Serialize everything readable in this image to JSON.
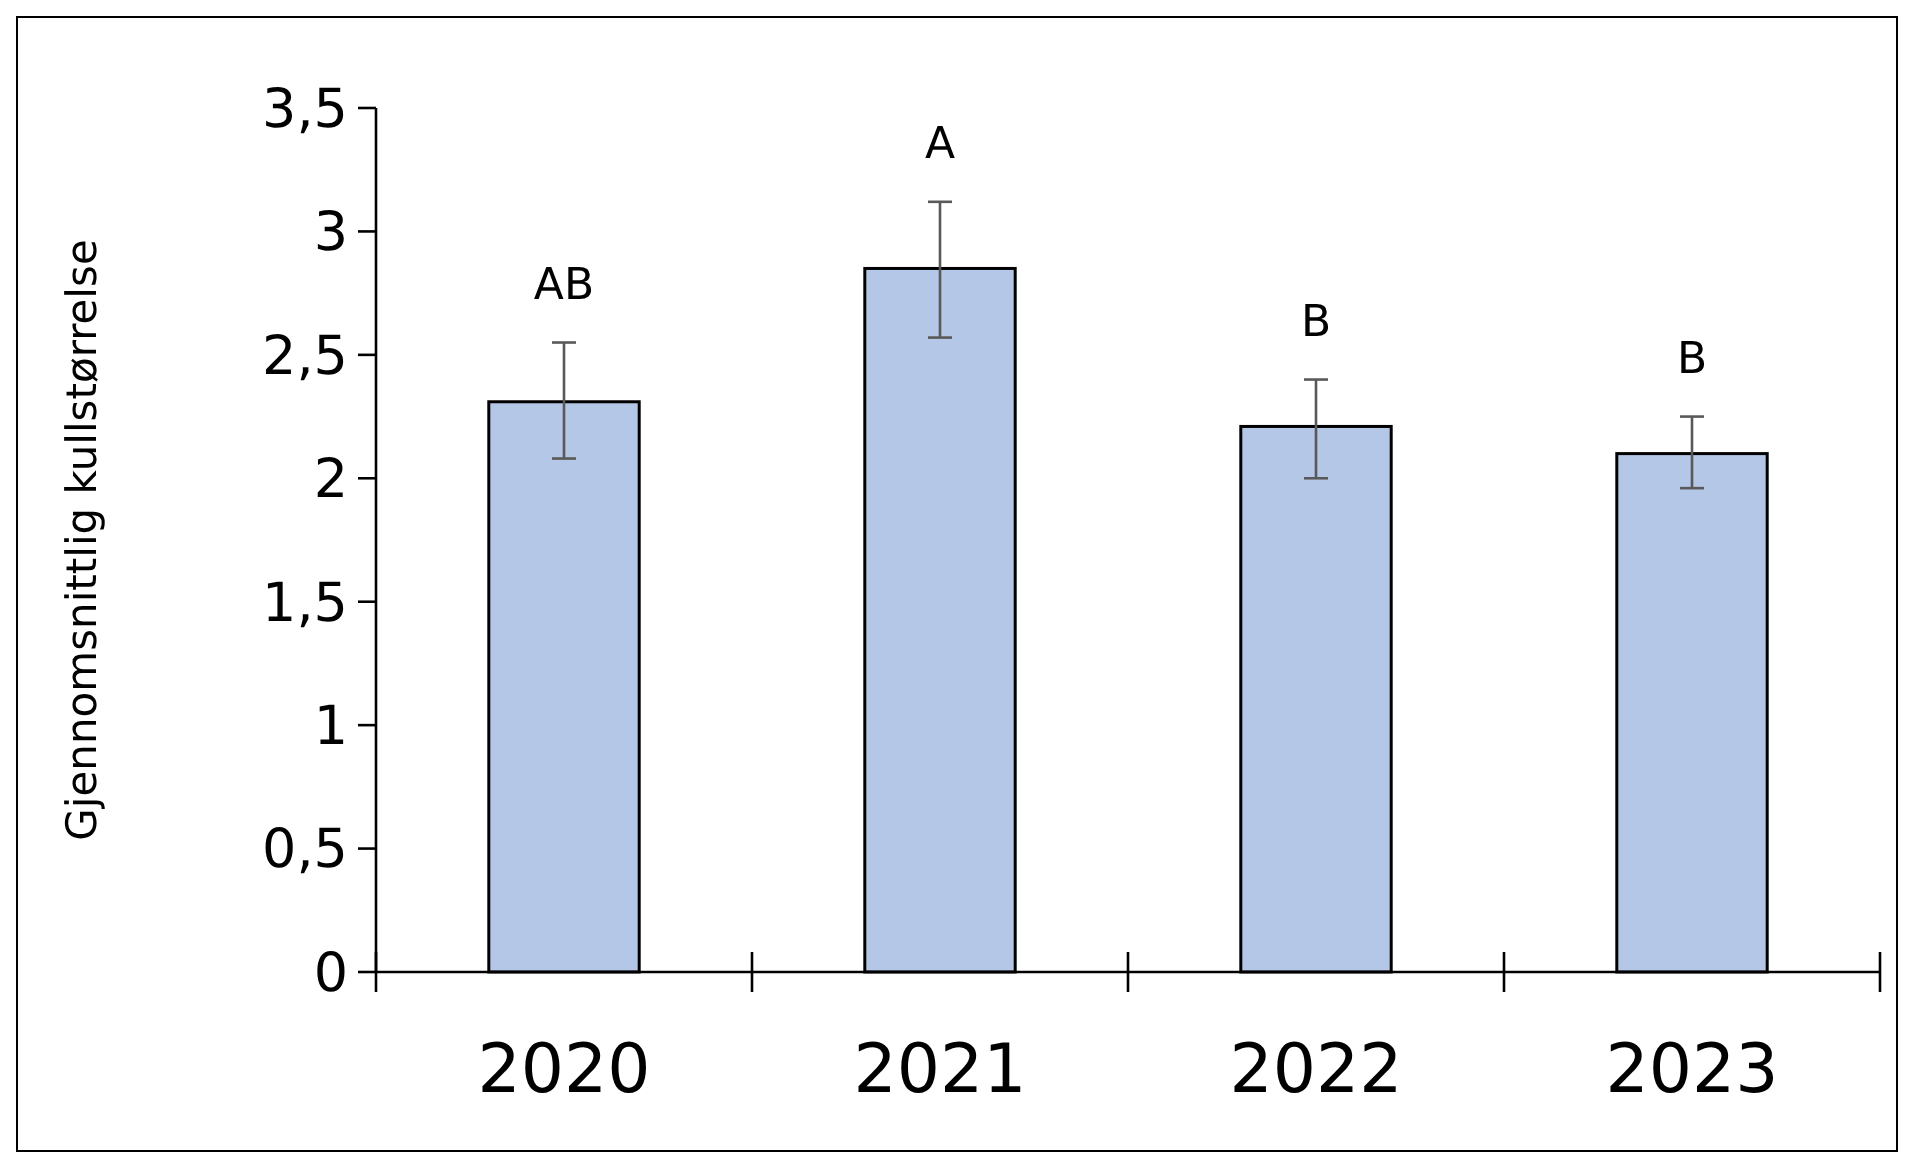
{
  "chart_data": {
    "type": "bar",
    "ylabel": "Gjennomsnittlig kullstørrelse",
    "categories": [
      "2020",
      "2021",
      "2022",
      "2023"
    ],
    "values": [
      2.31,
      2.85,
      2.21,
      2.1
    ],
    "errors": [
      [
        2.08,
        2.55
      ],
      [
        2.57,
        3.12
      ],
      [
        2.0,
        2.4
      ],
      [
        1.96,
        2.25
      ]
    ],
    "color": "#b4c7e7",
    "ylim": [
      0,
      3.5
    ],
    "yticks": [
      {
        "value": 0,
        "label": "0"
      },
      {
        "value": 0.5,
        "label": "0,5"
      },
      {
        "value": 1,
        "label": "1"
      },
      {
        "value": 1.5,
        "label": "1,5"
      },
      {
        "value": 2,
        "label": "2"
      },
      {
        "value": 2.5,
        "label": "2,5"
      },
      {
        "value": 3,
        "label": "3"
      },
      {
        "value": 3.5,
        "label": "3,5"
      }
    ],
    "annotations": [
      "AB",
      "A",
      "B",
      "B"
    ]
  }
}
